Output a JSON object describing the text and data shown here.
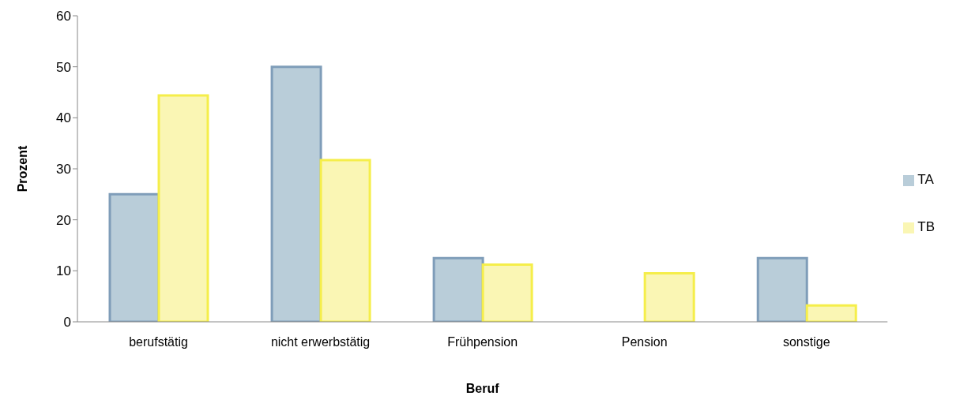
{
  "chart_data": {
    "type": "bar",
    "xlabel": "Beruf",
    "ylabel": "Prozent",
    "categories": [
      "berufstätig",
      "nicht erwerbstätig",
      "Frühpension",
      "Pension",
      "sonstige"
    ],
    "series": [
      {
        "name": "TA",
        "color": "#b9cdd9",
        "values": [
          25,
          50,
          12.5,
          0,
          12.5
        ]
      },
      {
        "name": "TB",
        "color": "#faf6b4",
        "values": [
          44.4,
          31.7,
          11.2,
          9.5,
          3.2
        ]
      }
    ],
    "ylim": [
      0,
      60
    ],
    "yticks": [
      0,
      10,
      20,
      30,
      40,
      50,
      60
    ],
    "grid": false,
    "legend": "right"
  }
}
